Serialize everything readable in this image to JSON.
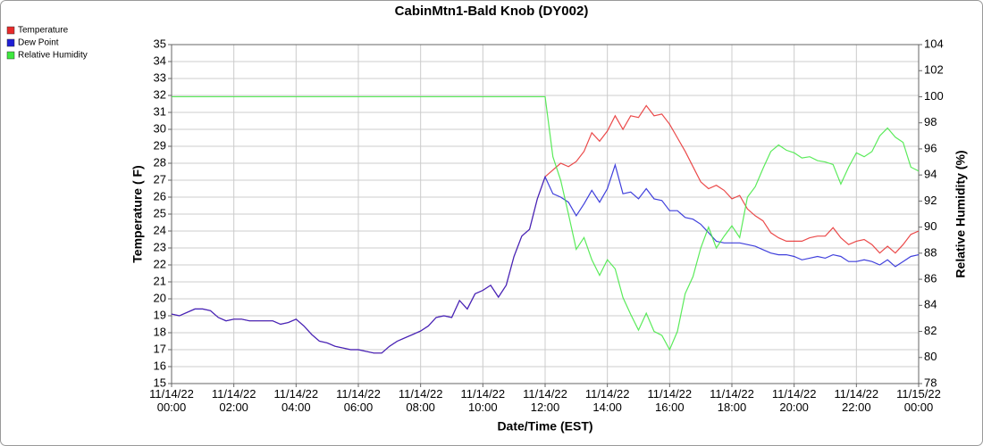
{
  "chart_data": {
    "type": "line",
    "title": "CabinMtn1-Bald Knob (DY002)",
    "x_label": "Date/Time (EST)",
    "y_label": "Temperature ( F)",
    "y2_label": "Relative Humidity (%)",
    "grid": true,
    "legend": "top-left",
    "xlim": [
      "11/14/22 00:00",
      "11/15/22 00:00"
    ],
    "xticks": [
      {
        "value": "11/14/22 00:00",
        "label": "11/14/22\n00:00"
      },
      {
        "value": "11/14/22 02:00",
        "label": "11/14/22\n02:00"
      },
      {
        "value": "11/14/22 04:00",
        "label": "11/14/22\n04:00"
      },
      {
        "value": "11/14/22 06:00",
        "label": "11/14/22\n06:00"
      },
      {
        "value": "11/14/22 08:00",
        "label": "11/14/22\n08:00"
      },
      {
        "value": "11/14/22 10:00",
        "label": "11/14/22\n10:00"
      },
      {
        "value": "11/14/22 12:00",
        "label": "11/14/22\n12:00"
      },
      {
        "value": "11/14/22 14:00",
        "label": "11/14/22\n14:00"
      },
      {
        "value": "11/14/22 16:00",
        "label": "11/14/22\n16:00"
      },
      {
        "value": "11/14/22 18:00",
        "label": "11/14/22\n18:00"
      },
      {
        "value": "11/14/22 20:00",
        "label": "11/14/22\n20:00"
      },
      {
        "value": "11/14/22 22:00",
        "label": "11/14/22\n22:00"
      },
      {
        "value": "11/15/22 00:00",
        "label": "11/15/22\n00:00"
      }
    ],
    "ylim": [
      15,
      35
    ],
    "yticks": [
      15,
      16,
      17,
      18,
      19,
      20,
      21,
      22,
      23,
      24,
      25,
      26,
      27,
      28,
      29,
      30,
      31,
      32,
      33,
      34,
      35
    ],
    "y2lim": [
      78,
      104
    ],
    "y2ticks": [
      78,
      80,
      82,
      84,
      86,
      88,
      90,
      92,
      94,
      96,
      98,
      100,
      102,
      104
    ],
    "x": [
      "11/14/22 00:00",
      "11/14/22 00:15",
      "11/14/22 00:30",
      "11/14/22 00:45",
      "11/14/22 01:00",
      "11/14/22 01:15",
      "11/14/22 01:30",
      "11/14/22 01:45",
      "11/14/22 02:00",
      "11/14/22 02:15",
      "11/14/22 02:30",
      "11/14/22 02:45",
      "11/14/22 03:00",
      "11/14/22 03:15",
      "11/14/22 03:30",
      "11/14/22 03:45",
      "11/14/22 04:00",
      "11/14/22 04:15",
      "11/14/22 04:30",
      "11/14/22 04:45",
      "11/14/22 05:00",
      "11/14/22 05:15",
      "11/14/22 05:30",
      "11/14/22 05:45",
      "11/14/22 06:00",
      "11/14/22 06:15",
      "11/14/22 06:30",
      "11/14/22 06:45",
      "11/14/22 07:00",
      "11/14/22 07:15",
      "11/14/22 07:30",
      "11/14/22 07:45",
      "11/14/22 08:00",
      "11/14/22 08:15",
      "11/14/22 08:30",
      "11/14/22 08:45",
      "11/14/22 09:00",
      "11/14/22 09:15",
      "11/14/22 09:30",
      "11/14/22 09:45",
      "11/14/22 10:00",
      "11/14/22 10:15",
      "11/14/22 10:30",
      "11/14/22 10:45",
      "11/14/22 11:00",
      "11/14/22 11:15",
      "11/14/22 11:30",
      "11/14/22 11:45",
      "11/14/22 12:00",
      "11/14/22 12:15",
      "11/14/22 12:30",
      "11/14/22 12:45",
      "11/14/22 13:00",
      "11/14/22 13:15",
      "11/14/22 13:30",
      "11/14/22 13:45",
      "11/14/22 14:00",
      "11/14/22 14:15",
      "11/14/22 14:30",
      "11/14/22 14:45",
      "11/14/22 15:00",
      "11/14/22 15:15",
      "11/14/22 15:30",
      "11/14/22 15:45",
      "11/14/22 16:00",
      "11/14/22 16:15",
      "11/14/22 16:30",
      "11/14/22 16:45",
      "11/14/22 17:00",
      "11/14/22 17:15",
      "11/14/22 17:30",
      "11/14/22 17:45",
      "11/14/22 18:00",
      "11/14/22 18:15",
      "11/14/22 18:30",
      "11/14/22 18:45",
      "11/14/22 19:00",
      "11/14/22 19:15",
      "11/14/22 19:30",
      "11/14/22 19:45",
      "11/14/22 20:00",
      "11/14/22 20:15",
      "11/14/22 20:30",
      "11/14/22 20:45",
      "11/14/22 21:00",
      "11/14/22 21:15",
      "11/14/22 21:30",
      "11/14/22 21:45",
      "11/14/22 22:00",
      "11/14/22 22:15",
      "11/14/22 22:30",
      "11/14/22 22:45",
      "11/14/22 23:00",
      "11/14/22 23:15",
      "11/14/22 23:30",
      "11/14/22 23:45",
      "11/15/22 00:00"
    ],
    "series": [
      {
        "name": "Temperature",
        "color": "#e82a2a",
        "values": [
          19.1,
          19.0,
          19.2,
          19.4,
          19.4,
          19.3,
          18.9,
          18.7,
          18.8,
          18.8,
          18.7,
          18.7,
          18.7,
          18.7,
          18.5,
          18.6,
          18.8,
          18.4,
          17.9,
          17.5,
          17.4,
          17.2,
          17.1,
          17.0,
          17.0,
          16.9,
          16.8,
          16.8,
          17.2,
          17.5,
          17.7,
          17.9,
          18.1,
          18.4,
          18.9,
          19.0,
          18.9,
          19.9,
          19.4,
          20.3,
          20.5,
          20.8,
          20.1,
          20.8,
          22.5,
          23.7,
          24.1,
          25.9,
          27.2,
          27.6,
          28.0,
          27.8,
          28.1,
          28.7,
          29.8,
          29.3,
          29.9,
          30.8,
          30.0,
          30.8,
          30.7,
          31.4,
          30.8,
          30.9,
          30.3,
          29.5,
          28.7,
          27.8,
          26.9,
          26.5,
          26.7,
          26.4,
          25.9,
          26.1,
          25.3,
          24.9,
          24.6,
          23.9,
          23.6,
          23.4,
          23.4,
          23.4,
          23.6,
          23.7,
          23.7,
          24.2,
          23.6,
          23.2,
          23.4,
          23.5,
          23.2,
          22.7,
          23.1,
          22.7,
          23.2,
          23.8,
          24.0
        ]
      },
      {
        "name": "Dew Point",
        "color": "#1f1fd6",
        "values": [
          19.1,
          19.0,
          19.2,
          19.4,
          19.4,
          19.3,
          18.9,
          18.7,
          18.8,
          18.8,
          18.7,
          18.7,
          18.7,
          18.7,
          18.5,
          18.6,
          18.8,
          18.4,
          17.9,
          17.5,
          17.4,
          17.2,
          17.1,
          17.0,
          17.0,
          16.9,
          16.8,
          16.8,
          17.2,
          17.5,
          17.7,
          17.9,
          18.1,
          18.4,
          18.9,
          19.0,
          18.9,
          19.9,
          19.4,
          20.3,
          20.5,
          20.8,
          20.1,
          20.8,
          22.5,
          23.7,
          24.1,
          25.9,
          27.2,
          26.2,
          26.0,
          25.7,
          24.9,
          25.6,
          26.4,
          25.7,
          26.5,
          27.9,
          26.2,
          26.3,
          25.9,
          26.5,
          25.9,
          25.8,
          25.2,
          25.2,
          24.8,
          24.7,
          24.4,
          23.9,
          23.4,
          23.3,
          23.3,
          23.3,
          23.2,
          23.1,
          22.9,
          22.7,
          22.6,
          22.6,
          22.5,
          22.3,
          22.4,
          22.5,
          22.4,
          22.6,
          22.5,
          22.2,
          22.2,
          22.3,
          22.2,
          22.0,
          22.3,
          21.9,
          22.2,
          22.5,
          22.6
        ]
      },
      {
        "name": "Relative Humidity",
        "color": "#3ee83e",
        "axis": "y2",
        "values": [
          100,
          100,
          100,
          100,
          100,
          100,
          100,
          100,
          100,
          100,
          100,
          100,
          100,
          100,
          100,
          100,
          100,
          100,
          100,
          100,
          100,
          100,
          100,
          100,
          100,
          100,
          100,
          100,
          100,
          100,
          100,
          100,
          100,
          100,
          100,
          100,
          100,
          100,
          100,
          100,
          100,
          100,
          100,
          100,
          100,
          100,
          100,
          100,
          100,
          95.4,
          93.6,
          91.0,
          88.3,
          89.2,
          87.5,
          86.3,
          87.5,
          86.8,
          84.6,
          83.3,
          82.1,
          83.4,
          82.0,
          81.7,
          80.6,
          82.0,
          84.9,
          86.2,
          88.4,
          90.0,
          88.4,
          89.3,
          90.1,
          89.2,
          92.3,
          93.1,
          94.5,
          95.8,
          96.3,
          95.9,
          95.7,
          95.3,
          95.4,
          95.1,
          95.0,
          94.8,
          93.3,
          94.6,
          95.7,
          95.4,
          95.8,
          97.0,
          97.6,
          96.9,
          96.5,
          94.6,
          94.3
        ]
      }
    ]
  }
}
